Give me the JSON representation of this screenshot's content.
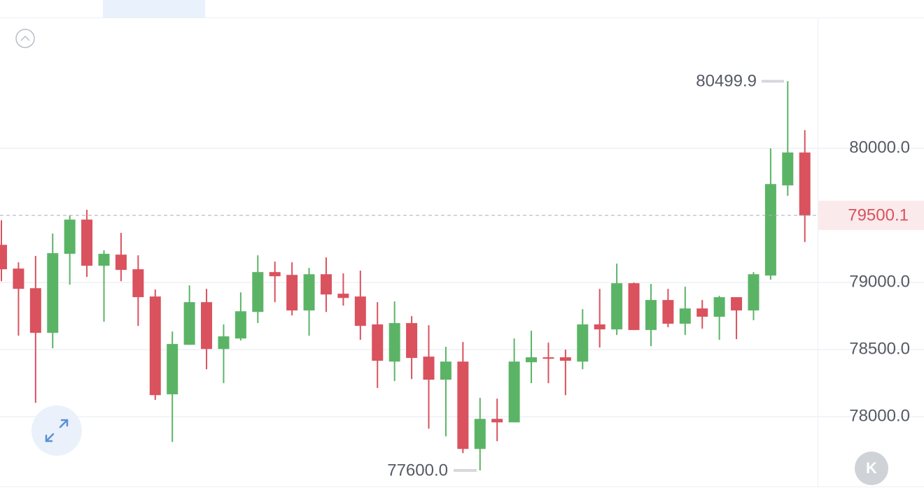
{
  "chart_data": {
    "type": "candlestick",
    "open": [
      79281,
      79104,
      78958,
      78625,
      79214,
      79469,
      79125,
      79208,
      79099,
      78896,
      78167,
      78536,
      78854,
      78505,
      78583,
      78781,
      79078,
      79057,
      78792,
      79062,
      78917,
      78896,
      78688,
      78411,
      78698,
      78448,
      78276,
      78411,
      77760,
      77984,
      77958,
      78406,
      78443,
      78443,
      78411,
      78688,
      78651,
      78995,
      78646,
      78870,
      78693,
      78807,
      78745,
      78891,
      78792,
      79052,
      79724,
      79969
    ],
    "high": [
      79464,
      79151,
      79198,
      79365,
      79500,
      79542,
      79240,
      79370,
      79203,
      78948,
      78635,
      78979,
      78953,
      78688,
      78927,
      79203,
      79156,
      79151,
      79109,
      79187,
      79068,
      79089,
      78854,
      78859,
      78750,
      78682,
      78521,
      78557,
      78141,
      78135,
      78583,
      78641,
      78552,
      78500,
      78802,
      78953,
      79141,
      79000,
      78990,
      78953,
      78969,
      78870,
      78901,
      78891,
      79078,
      80000,
      80499.9,
      80135
    ],
    "low": [
      79010,
      78604,
      78104,
      78510,
      78984,
      79042,
      78708,
      79010,
      78677,
      78125,
      77812,
      78536,
      78354,
      78250,
      78568,
      78698,
      78854,
      78755,
      78604,
      78781,
      78828,
      78573,
      78214,
      78266,
      78281,
      77911,
      77854,
      77729,
      77600,
      77818,
      77958,
      78250,
      78250,
      78161,
      78354,
      78516,
      78609,
      78646,
      78526,
      78667,
      78609,
      78656,
      78573,
      78578,
      78719,
      79021,
      79646,
      79302
    ],
    "close": [
      79099,
      78953,
      78625,
      79219,
      79469,
      79125,
      79214,
      79094,
      78891,
      78161,
      78542,
      78854,
      78505,
      78599,
      78786,
      79078,
      79047,
      78792,
      79062,
      78911,
      78885,
      78677,
      78417,
      78698,
      78438,
      78276,
      78411,
      77760,
      77984,
      77958,
      78411,
      78443,
      78432,
      78417,
      78688,
      78651,
      78995,
      78646,
      78870,
      78693,
      78807,
      78745,
      78891,
      78792,
      79062,
      79734,
      79969,
      79500.1
    ],
    "up_color": "#5bb466",
    "down_color": "#d9525e",
    "ylim": [
      77480,
      80970
    ],
    "yticks": [
      {
        "value": 78000,
        "label": "78000.0"
      },
      {
        "value": 78500,
        "label": "78500.0"
      },
      {
        "value": 79000,
        "label": "79000.0"
      },
      {
        "value": 80000,
        "label": "80000.0"
      }
    ],
    "grid": true,
    "last_price": {
      "value": 79500.1,
      "label": "79500.1"
    },
    "high_marker": {
      "value": 80499.9,
      "label": "80499.9"
    },
    "low_marker": {
      "value": 77600,
      "label": "77600.0"
    },
    "k_button": "K"
  }
}
